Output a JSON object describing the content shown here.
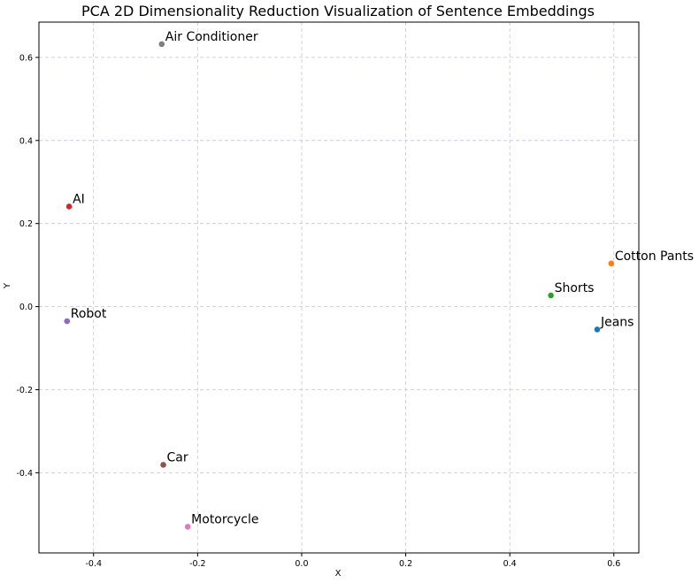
{
  "chart_data": {
    "type": "scatter",
    "title": "PCA 2D Dimensionality Reduction Visualization of Sentence Embeddings",
    "xlabel": "X",
    "ylabel": "Y",
    "xlim": [
      -0.505,
      0.648
    ],
    "ylim": [
      -0.593,
      0.685
    ],
    "grid": true,
    "x_ticks": [
      -0.4,
      -0.2,
      0.0,
      0.2,
      0.4,
      0.6
    ],
    "y_ticks": [
      -0.4,
      -0.2,
      0.0,
      0.2,
      0.4,
      0.6
    ],
    "x_tick_labels": [
      "-0.4",
      "-0.2",
      "0.0",
      "0.2",
      "0.4",
      "0.6"
    ],
    "y_tick_labels": [
      "-0.4",
      "-0.2",
      "0.0",
      "0.2",
      "0.4",
      "0.6"
    ],
    "points": [
      {
        "label": "Jeans",
        "x": 0.568,
        "y": -0.055,
        "color": "#1f77b4"
      },
      {
        "label": "Cotton Pants",
        "x": 0.595,
        "y": 0.104,
        "color": "#ff7f0e"
      },
      {
        "label": "Shorts",
        "x": 0.479,
        "y": 0.027,
        "color": "#2ca02c"
      },
      {
        "label": "AI",
        "x": -0.447,
        "y": 0.241,
        "color": "#d62728"
      },
      {
        "label": "Robot",
        "x": -0.451,
        "y": -0.035,
        "color": "#9467bd"
      },
      {
        "label": "Car",
        "x": -0.266,
        "y": -0.381,
        "color": "#8c564b"
      },
      {
        "label": "Motorcycle",
        "x": -0.219,
        "y": -0.53,
        "color": "#e377c2"
      },
      {
        "label": "Air Conditioner",
        "x": -0.269,
        "y": 0.632,
        "color": "#7f7f7f"
      }
    ]
  }
}
